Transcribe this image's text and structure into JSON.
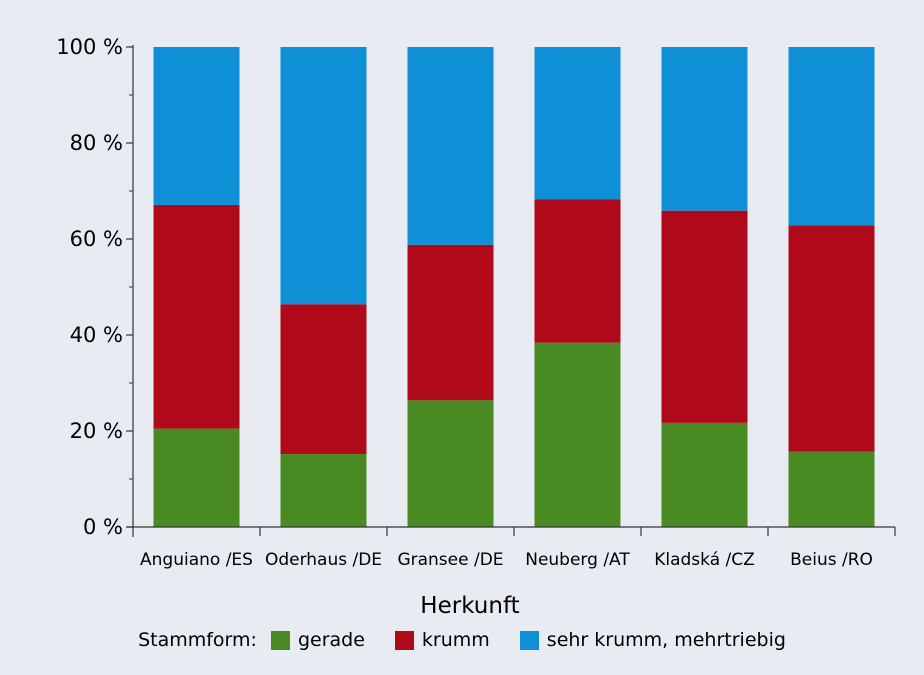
{
  "chart_data": {
    "type": "bar",
    "stacked": true,
    "categories": [
      "Anguiano /ES",
      "Oderhaus /DE",
      "Gransee /DE",
      "Neuberg /AT",
      "Kladská /CZ",
      "Beius /RO"
    ],
    "series": [
      {
        "name": "gerade",
        "color": "#4a8a22",
        "values": [
          20.5,
          15.2,
          26.4,
          38.4,
          21.7,
          15.7
        ]
      },
      {
        "name": "krumm",
        "color": "#b00a1a",
        "values": [
          46.6,
          31.2,
          32.4,
          29.9,
          44.2,
          47.1
        ]
      },
      {
        "name": "sehr krumm, mehrtriebig",
        "color": "#0e8fd6",
        "values": [
          32.9,
          53.6,
          41.2,
          31.7,
          34.1,
          37.2
        ]
      }
    ],
    "y_ticks": [
      "0 %",
      "20 %",
      "40 %",
      "60 %",
      "80 %",
      "100 %"
    ],
    "ylim": [
      0,
      100
    ],
    "xlabel": "Herkunft",
    "ylabel": "",
    "legend_title": "Stammform:",
    "legend_position": "bottom",
    "grid": false
  }
}
